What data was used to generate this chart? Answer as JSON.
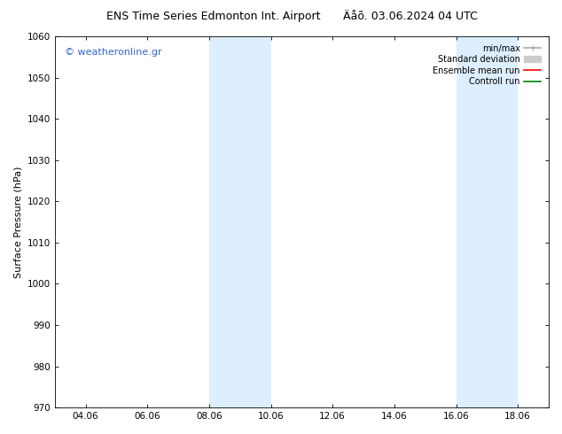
{
  "title_left": "ENS Time Series Edmonton Int. Airport",
  "title_right": "Äåõ. 03.06.2024 04 UTC",
  "ylabel": "Surface Pressure (hPa)",
  "ylim": [
    970,
    1060
  ],
  "yticks": [
    970,
    980,
    990,
    1000,
    1010,
    1020,
    1030,
    1040,
    1050,
    1060
  ],
  "xtick_labels": [
    "04.06",
    "06.06",
    "08.06",
    "10.06",
    "12.06",
    "14.06",
    "16.06",
    "18.06"
  ],
  "xtick_positions": [
    1,
    3,
    5,
    7,
    9,
    11,
    13,
    15
  ],
  "xlim": [
    0,
    16
  ],
  "shaded_regions": [
    {
      "xstart": 5,
      "xend": 7
    },
    {
      "xstart": 13,
      "xend": 15
    }
  ],
  "shade_color": "#ddeeff",
  "watermark_text": "© weatheronline.gr",
  "watermark_color": "#3366cc",
  "bg_color": "#ffffff",
  "title_fontsize": 9,
  "axis_label_fontsize": 8,
  "tick_fontsize": 7.5,
  "legend_fontsize": 7,
  "watermark_fontsize": 8
}
